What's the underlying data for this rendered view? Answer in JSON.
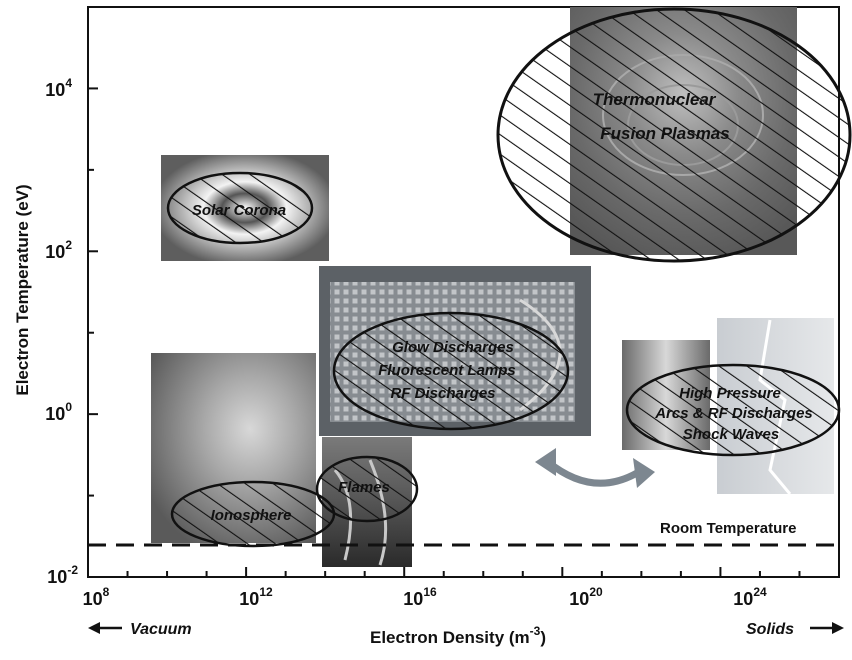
{
  "axes": {
    "xlabel": "Electron  Density (m",
    "xlabel_exp": "-3",
    "xlabel_tail": ")",
    "ylabel": "Electron  Temperature (eV)",
    "x_ticks": [
      {
        "base": "10",
        "exp": "8",
        "value": 8
      },
      {
        "base": "10",
        "exp": "12",
        "value": 12
      },
      {
        "base": "10",
        "exp": "16",
        "value": 16
      },
      {
        "base": "10",
        "exp": "20",
        "value": 20
      },
      {
        "base": "10",
        "exp": "24",
        "value": 24
      }
    ],
    "y_ticks": [
      {
        "base": "10",
        "exp": "4",
        "value": 4
      },
      {
        "base": "10",
        "exp": "2",
        "value": 2
      },
      {
        "base": "10",
        "exp": "0",
        "value": 0
      },
      {
        "base": "10",
        "exp": "-2",
        "value": -2
      }
    ],
    "x_range_log10": [
      8,
      27
    ],
    "y_range_log10": [
      -2,
      5
    ],
    "x_scale": "log",
    "y_scale": "log",
    "left_arrow_label": "Vacuum",
    "right_arrow_label": "Solids"
  },
  "reference_line": {
    "label": "Room Temperature",
    "style": "dashed"
  },
  "regions": [
    {
      "name": "thermonuclear",
      "lines": [
        "Thermonuclear",
        "Fusion  Plasmas"
      ]
    },
    {
      "name": "solar-corona",
      "lines": [
        "Solar Corona"
      ]
    },
    {
      "name": "glow-discharges",
      "lines": [
        "Glow  Discharges",
        "Fluorescent Lamps",
        "RF  Discharges"
      ]
    },
    {
      "name": "high-pressure",
      "lines": [
        "High  Pressure",
        "Arcs & RF Discharges",
        "Shock Waves"
      ]
    },
    {
      "name": "ionosphere",
      "lines": [
        "Ionosphere"
      ]
    },
    {
      "name": "flames",
      "lines": [
        "Flames"
      ]
    }
  ],
  "colors": {
    "ink": "#111111",
    "arrow": "#7d8790"
  }
}
